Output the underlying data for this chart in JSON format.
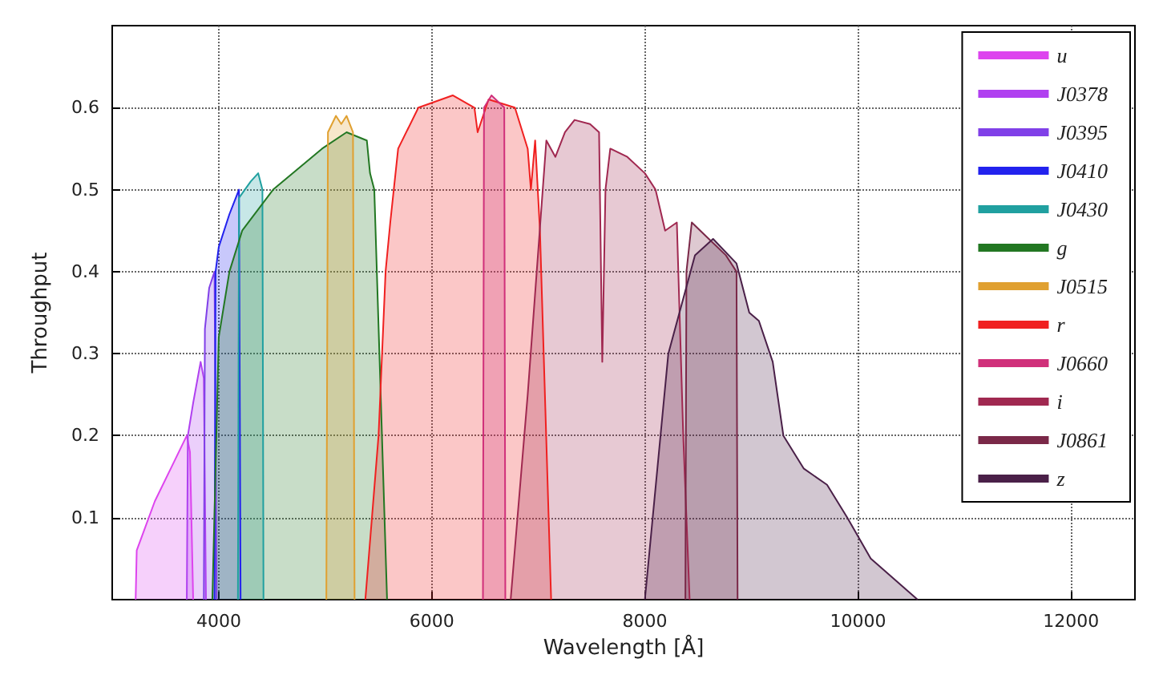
{
  "chart_data": {
    "type": "area",
    "xlabel": "Wavelength [Å]",
    "ylabel": "Throughput",
    "xlim": [
      3000,
      12600
    ],
    "ylim": [
      0,
      0.7
    ],
    "xticks": [
      4000,
      6000,
      8000,
      10000,
      12000
    ],
    "yticks": [
      0.1,
      0.2,
      0.3,
      0.4,
      0.5,
      0.6
    ],
    "grid": true,
    "legend": "top right",
    "line_style": "solid",
    "series": [
      {
        "name": "u",
        "color": "#dd44ee",
        "x": [
          3220,
          3230,
          3400,
          3550,
          3700,
          3730,
          3760
        ],
        "values": [
          0,
          0.06,
          0.12,
          0.16,
          0.2,
          0.18,
          0
        ]
      },
      {
        "name": "J0378",
        "color": "#b040f0",
        "x": [
          3700,
          3710,
          3760,
          3830,
          3860,
          3880
        ],
        "values": [
          0,
          0.2,
          0.24,
          0.29,
          0.27,
          0
        ]
      },
      {
        "name": "J0395",
        "color": "#8040e8",
        "x": [
          3860,
          3870,
          3910,
          3960,
          3980
        ],
        "values": [
          0,
          0.33,
          0.38,
          0.4,
          0
        ]
      },
      {
        "name": "J0410",
        "color": "#2222ee",
        "x": [
          3960,
          3970,
          4000,
          4100,
          4190,
          4205
        ],
        "values": [
          0,
          0.4,
          0.43,
          0.47,
          0.5,
          0
        ]
      },
      {
        "name": "J0430",
        "color": "#20a0a0",
        "x": [
          4180,
          4190,
          4300,
          4370,
          4410,
          4420
        ],
        "values": [
          0,
          0.49,
          0.51,
          0.52,
          0.5,
          0
        ]
      },
      {
        "name": "g",
        "color": "#227722",
        "x": [
          3940,
          4000,
          4100,
          4220,
          4510,
          4970,
          5200,
          5390,
          5420,
          5460,
          5580
        ],
        "values": [
          0,
          0.32,
          0.4,
          0.45,
          0.5,
          0.55,
          0.57,
          0.56,
          0.52,
          0.5,
          0
        ]
      },
      {
        "name": "J0515",
        "color": "#e0a030",
        "x": [
          5010,
          5025,
          5100,
          5150,
          5200,
          5260,
          5275
        ],
        "values": [
          0,
          0.57,
          0.59,
          0.58,
          0.59,
          0.57,
          0
        ]
      },
      {
        "name": "r",
        "color": "#f02020",
        "x": [
          5376,
          5500,
          5566,
          5610,
          5684,
          5874,
          6196,
          6400,
          6430,
          6533,
          6780,
          6900,
          6930,
          6970,
          7015,
          7120
        ],
        "values": [
          0,
          0.2,
          0.4,
          0.46,
          0.55,
          0.6,
          0.615,
          0.6,
          0.57,
          0.61,
          0.6,
          0.55,
          0.5,
          0.56,
          0.45,
          0
        ]
      },
      {
        "name": "J0660",
        "color": "#d0307a",
        "x": [
          6480,
          6490,
          6560,
          6680,
          6690
        ],
        "values": [
          0,
          0.6,
          0.615,
          0.6,
          0
        ]
      },
      {
        "name": "i",
        "color": "#a02850",
        "x": [
          6740,
          6900,
          7075,
          7160,
          7250,
          7340,
          7485,
          7570,
          7600,
          7630,
          7675,
          7835,
          8000,
          8100,
          8190,
          8300,
          8360,
          8420
        ],
        "values": [
          0,
          0.25,
          0.56,
          0.54,
          0.57,
          0.585,
          0.58,
          0.57,
          0.29,
          0.5,
          0.55,
          0.54,
          0.52,
          0.5,
          0.45,
          0.46,
          0.2,
          0
        ]
      },
      {
        "name": "J0861",
        "color": "#7a2848",
        "x": [
          8380,
          8390,
          8440,
          8600,
          8760,
          8860,
          8870
        ],
        "values": [
          0,
          0.4,
          0.46,
          0.44,
          0.42,
          0.4,
          0
        ]
      },
      {
        "name": "z",
        "color": "#4a2048",
        "x": [
          8000,
          8220,
          8470,
          8640,
          8860,
          8980,
          9070,
          9200,
          9300,
          9490,
          9710,
          9900,
          10120,
          10560
        ],
        "values": [
          0,
          0.3,
          0.42,
          0.44,
          0.41,
          0.35,
          0.34,
          0.29,
          0.2,
          0.16,
          0.14,
          0.1,
          0.05,
          0
        ]
      }
    ]
  }
}
